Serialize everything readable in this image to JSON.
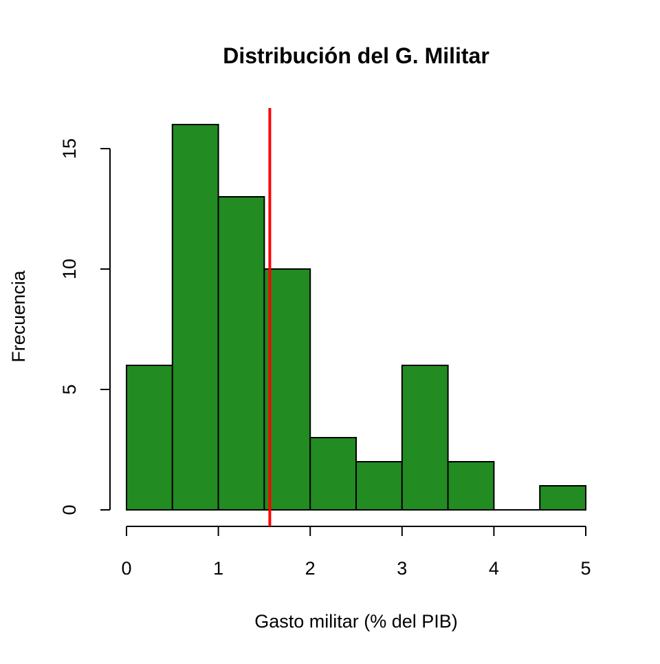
{
  "chart_data": {
    "type": "bar",
    "subtype": "histogram",
    "title": "Distribución del G. Militar",
    "xlabel": "Gasto militar (% del PIB)",
    "ylabel": "Frecuencia",
    "bin_edges": [
      0,
      0.5,
      1,
      1.5,
      2,
      2.5,
      3,
      3.5,
      4,
      4.5,
      5
    ],
    "values": [
      6,
      16,
      13,
      10,
      3,
      2,
      6,
      2,
      0,
      1
    ],
    "xlim": [
      0,
      5
    ],
    "ylim": [
      0,
      16
    ],
    "x_ticks": [
      "0",
      "1",
      "2",
      "3",
      "4",
      "5"
    ],
    "y_ticks": [
      "0",
      "5",
      "10",
      "15"
    ],
    "vline": {
      "x": 1.56,
      "color": "#ff0000"
    },
    "bar_color": "#228b22",
    "grid": false
  }
}
